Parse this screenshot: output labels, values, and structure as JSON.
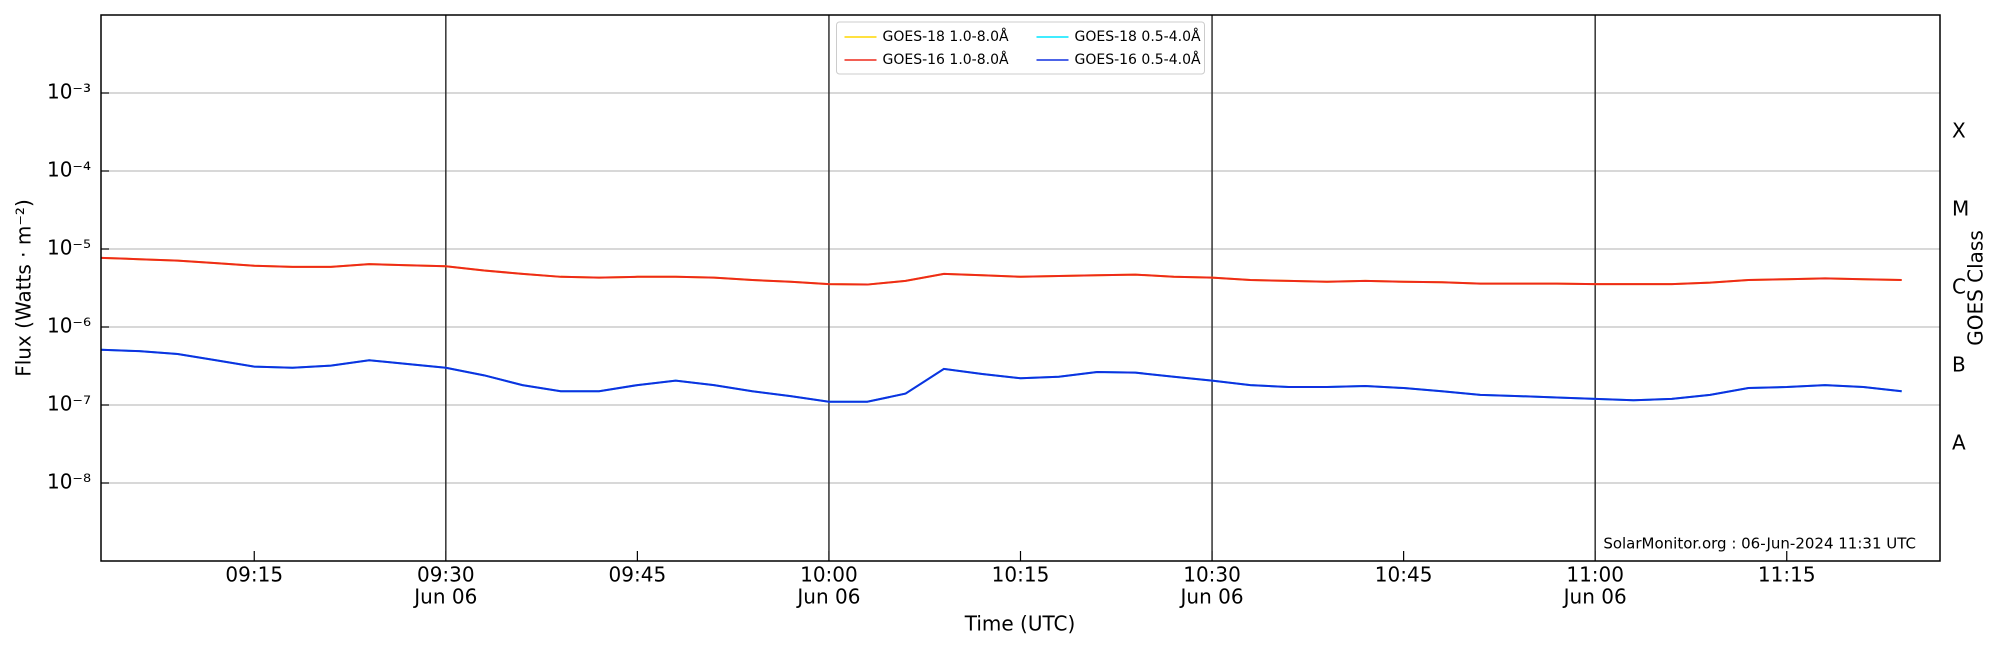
{
  "chart_data": {
    "type": "line",
    "y_label": "Flux (Watts · m⁻²)",
    "x_label": "Time (UTC)",
    "y2_label": "GOES Class",
    "annotation": "SolarMonitor.org : 06-Jun-2024 11:31 UTC",
    "log_y": true,
    "grid": true,
    "legend": "upper center",
    "xlim": [
      "09:03",
      "11:27"
    ],
    "xticks": [
      {
        "value": "09:15",
        "label": "09:15"
      },
      {
        "value": "09:30",
        "label": "09:30",
        "sublabel": "Jun 06"
      },
      {
        "value": "09:45",
        "label": "09:45"
      },
      {
        "value": "10:00",
        "label": "10:00",
        "sublabel": "Jun 06"
      },
      {
        "value": "10:15",
        "label": "10:15"
      },
      {
        "value": "10:30",
        "label": "10:30",
        "sublabel": "Jun 06"
      },
      {
        "value": "10:45",
        "label": "10:45"
      },
      {
        "value": "11:00",
        "label": "11:00",
        "sublabel": "Jun 06"
      },
      {
        "value": "11:15",
        "label": "11:15"
      }
    ],
    "ylim": [
      1e-09,
      0.01
    ],
    "yticks": [
      {
        "value": 1e-08,
        "label": "10⁻⁸"
      },
      {
        "value": 1e-07,
        "label": "10⁻⁷"
      },
      {
        "value": 1e-06,
        "label": "10⁻⁶"
      },
      {
        "value": 1e-05,
        "label": "10⁻⁵"
      },
      {
        "value": 0.0001,
        "label": "10⁻⁴"
      },
      {
        "value": 0.001,
        "label": "10⁻³"
      }
    ],
    "classes": [
      {
        "value": 1e-08,
        "label": "A"
      },
      {
        "value": 1e-07,
        "label": "B"
      },
      {
        "value": 1e-06,
        "label": "C"
      },
      {
        "value": 1e-05,
        "label": "M"
      },
      {
        "value": 0.0001,
        "label": "X"
      }
    ],
    "x": [
      "09:03",
      "09:06",
      "09:09",
      "09:12",
      "09:15",
      "09:18",
      "09:21",
      "09:24",
      "09:27",
      "09:30",
      "09:33",
      "09:36",
      "09:39",
      "09:42",
      "09:45",
      "09:48",
      "09:51",
      "09:54",
      "09:57",
      "10:00",
      "10:03",
      "10:06",
      "10:09",
      "10:12",
      "10:15",
      "10:18",
      "10:21",
      "10:24",
      "10:27",
      "10:30",
      "10:33",
      "10:36",
      "10:39",
      "10:42",
      "10:45",
      "10:48",
      "10:51",
      "10:54",
      "10:57",
      "11:00",
      "11:03",
      "11:06",
      "11:09",
      "11:12",
      "11:15",
      "11:18",
      "11:21",
      "11:24"
    ],
    "series": [
      {
        "name": "GOES-18 1.0-8.0Å",
        "color": "#ffd700",
        "values": [
          7.7e-06,
          7.4e-06,
          7.1e-06,
          6.6e-06,
          6.1e-06,
          5.9e-06,
          5.9e-06,
          6.4e-06,
          6.2e-06,
          6e-06,
          5.3e-06,
          4.8e-06,
          4.4e-06,
          4.3e-06,
          4.4e-06,
          4.4e-06,
          4.3e-06,
          4e-06,
          3.8e-06,
          3.55e-06,
          3.5e-06,
          3.9e-06,
          4.8e-06,
          4.6e-06,
          4.4e-06,
          4.5e-06,
          4.6e-06,
          4.7e-06,
          4.4e-06,
          4.3e-06,
          4e-06,
          3.9e-06,
          3.8e-06,
          3.9e-06,
          3.8e-06,
          3.75e-06,
          3.6e-06,
          3.6e-06,
          3.6e-06,
          3.55e-06,
          3.55e-06,
          3.55e-06,
          3.7e-06,
          4e-06,
          4.1e-06,
          4.2e-06,
          4.1e-06,
          4e-06
        ]
      },
      {
        "name": "GOES-16 1.0-8.0Å",
        "color": "#ee2a1b",
        "values": [
          7.7e-06,
          7.4e-06,
          7.1e-06,
          6.6e-06,
          6.1e-06,
          5.9e-06,
          5.9e-06,
          6.4e-06,
          6.2e-06,
          6e-06,
          5.3e-06,
          4.8e-06,
          4.4e-06,
          4.3e-06,
          4.4e-06,
          4.4e-06,
          4.3e-06,
          4e-06,
          3.8e-06,
          3.55e-06,
          3.5e-06,
          3.9e-06,
          4.8e-06,
          4.6e-06,
          4.4e-06,
          4.5e-06,
          4.6e-06,
          4.7e-06,
          4.4e-06,
          4.3e-06,
          4e-06,
          3.9e-06,
          3.8e-06,
          3.9e-06,
          3.8e-06,
          3.75e-06,
          3.6e-06,
          3.6e-06,
          3.6e-06,
          3.55e-06,
          3.55e-06,
          3.55e-06,
          3.7e-06,
          4e-06,
          4.1e-06,
          4.2e-06,
          4.1e-06,
          4e-06
        ]
      },
      {
        "name": "GOES-18 0.5-4.0Å",
        "color": "#00e5ff",
        "values": [
          5.1e-07,
          4.9e-07,
          4.5e-07,
          3.75e-07,
          3.1e-07,
          3e-07,
          3.2e-07,
          3.75e-07,
          3.35e-07,
          3e-07,
          2.4e-07,
          1.8e-07,
          1.5e-07,
          1.5e-07,
          1.8e-07,
          2.05e-07,
          1.8e-07,
          1.5e-07,
          1.3e-07,
          1.1e-07,
          1.1e-07,
          1.4e-07,
          2.9e-07,
          2.5e-07,
          2.2e-07,
          2.3e-07,
          2.65e-07,
          2.6e-07,
          2.3e-07,
          2.05e-07,
          1.8e-07,
          1.7e-07,
          1.7e-07,
          1.75e-07,
          1.65e-07,
          1.5e-07,
          1.35e-07,
          1.3e-07,
          1.25e-07,
          1.2e-07,
          1.15e-07,
          1.2e-07,
          1.35e-07,
          1.65e-07,
          1.7e-07,
          1.8e-07,
          1.7e-07,
          1.5e-07
        ]
      },
      {
        "name": "GOES-16 0.5-4.0Å",
        "color": "#1030e0",
        "values": [
          5.1e-07,
          4.9e-07,
          4.5e-07,
          3.75e-07,
          3.1e-07,
          3e-07,
          3.2e-07,
          3.75e-07,
          3.35e-07,
          3e-07,
          2.4e-07,
          1.8e-07,
          1.5e-07,
          1.5e-07,
          1.8e-07,
          2.05e-07,
          1.8e-07,
          1.5e-07,
          1.3e-07,
          1.1e-07,
          1.1e-07,
          1.4e-07,
          2.9e-07,
          2.5e-07,
          2.2e-07,
          2.3e-07,
          2.65e-07,
          2.6e-07,
          2.3e-07,
          2.05e-07,
          1.8e-07,
          1.7e-07,
          1.7e-07,
          1.75e-07,
          1.65e-07,
          1.5e-07,
          1.35e-07,
          1.3e-07,
          1.25e-07,
          1.2e-07,
          1.15e-07,
          1.2e-07,
          1.35e-07,
          1.65e-07,
          1.7e-07,
          1.8e-07,
          1.7e-07,
          1.5e-07
        ]
      }
    ]
  }
}
